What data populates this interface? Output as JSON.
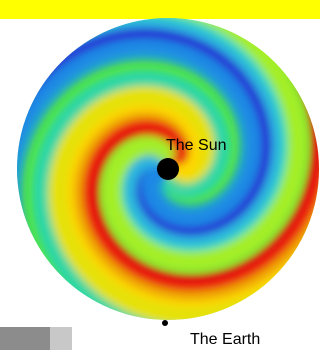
{
  "labels": {
    "sun": "The Sun",
    "earth": "The Earth"
  }
}
